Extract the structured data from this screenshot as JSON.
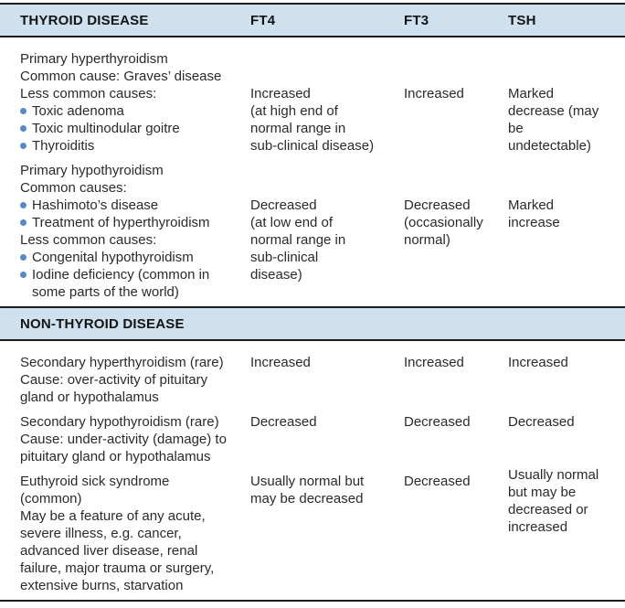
{
  "table": {
    "header": {
      "col1": "THYROID DISEASE",
      "col2": "FT4",
      "col3": "FT3",
      "col4": "TSH"
    },
    "section2_header": "NON-THYROID DISEASE",
    "colors": {
      "band_background": "#cfe0ee",
      "bullet_blue": "#5589c8",
      "rule_black": "#1b1b1b",
      "text": "#2a2a2a"
    },
    "rows": [
      {
        "condition": [
          {
            "text": "Primary hyperthyroidism\nCommon cause: Graves’ disease\nLess common causes:",
            "bullet": false
          },
          {
            "text": "Toxic adenoma",
            "bullet": true
          },
          {
            "text": "Toxic multinodular goitre",
            "bullet": true
          },
          {
            "text": "Thyroiditis",
            "bullet": true
          }
        ],
        "ft4": "Increased\n(at high end of\nnormal range in\nsub-clinical disease)",
        "ft3": "Increased",
        "tsh": "Marked\ndecrease (may\nbe\nundetectable)"
      },
      {
        "condition": [
          {
            "text": "Primary hypothyroidism\nCommon causes:",
            "bullet": false
          },
          {
            "text": "Hashimoto’s disease",
            "bullet": true
          },
          {
            "text": "Treatment of hyperthyroidism",
            "bullet": true
          },
          {
            "text": "Less common causes:",
            "bullet": false
          },
          {
            "text": "Congenital hypothyroidism",
            "bullet": true
          },
          {
            "text": "Iodine deficiency (common in\nsome parts of the world)",
            "bullet": true
          }
        ],
        "ft4": "Decreased\n(at low end of\nnormal range in\nsub-clinical\ndisease)",
        "ft3": "Decreased\n(occasionally\nnormal)",
        "tsh": "Marked\nincrease"
      },
      {
        "condition": [
          {
            "text": "Secondary hyperthyroidism (rare)\nCause: over-activity of pituitary\ngland or hypothalamus",
            "bullet": false
          }
        ],
        "ft4": "Increased",
        "ft3": "Increased",
        "tsh": "Increased"
      },
      {
        "condition": [
          {
            "text": "Secondary hypothyroidism (rare)\nCause: under-activity (damage) to\npituitary gland or hypothalamus",
            "bullet": false
          }
        ],
        "ft4": "Decreased",
        "ft3": "Decreased",
        "tsh": "Decreased"
      },
      {
        "condition": [
          {
            "text": "Euthyroid sick syndrome\n(common)\nMay be a feature of any acute,\nsevere illness, e.g. cancer,\nadvanced liver disease, renal\nfailure, major trauma or surgery,\nextensive burns, starvation",
            "bullet": false
          }
        ],
        "ft4": "Usually normal but\nmay be decreased",
        "ft3": "Decreased",
        "tsh": "Usually normal\nbut may be\ndecreased or\nincreased"
      }
    ]
  }
}
